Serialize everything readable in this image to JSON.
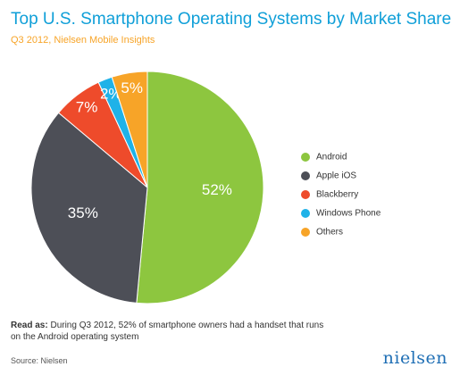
{
  "chart_data": {
    "type": "pie",
    "title": "Top U.S. Smartphone Operating Systems by Market Share",
    "subtitle": "Q3 2012, Nielsen Mobile Insights",
    "categories": [
      "Android",
      "Apple iOS",
      "Blackberry",
      "Windows Phone",
      "Others"
    ],
    "values": [
      52,
      35,
      7,
      2,
      5
    ],
    "value_labels": [
      "52%",
      "35%",
      "7%",
      "2%",
      "5%"
    ],
    "colors": [
      "#8dc63f",
      "#4d4f57",
      "#ee4b2b",
      "#1fb2e8",
      "#f7a428"
    ],
    "legend": "right"
  },
  "footnote": {
    "label": "Read as:",
    "text": "During Q3 2012, 52% of smartphone owners had a handset that runs on the Android operating system"
  },
  "source": "Source: Nielsen",
  "logo": "nielsen"
}
